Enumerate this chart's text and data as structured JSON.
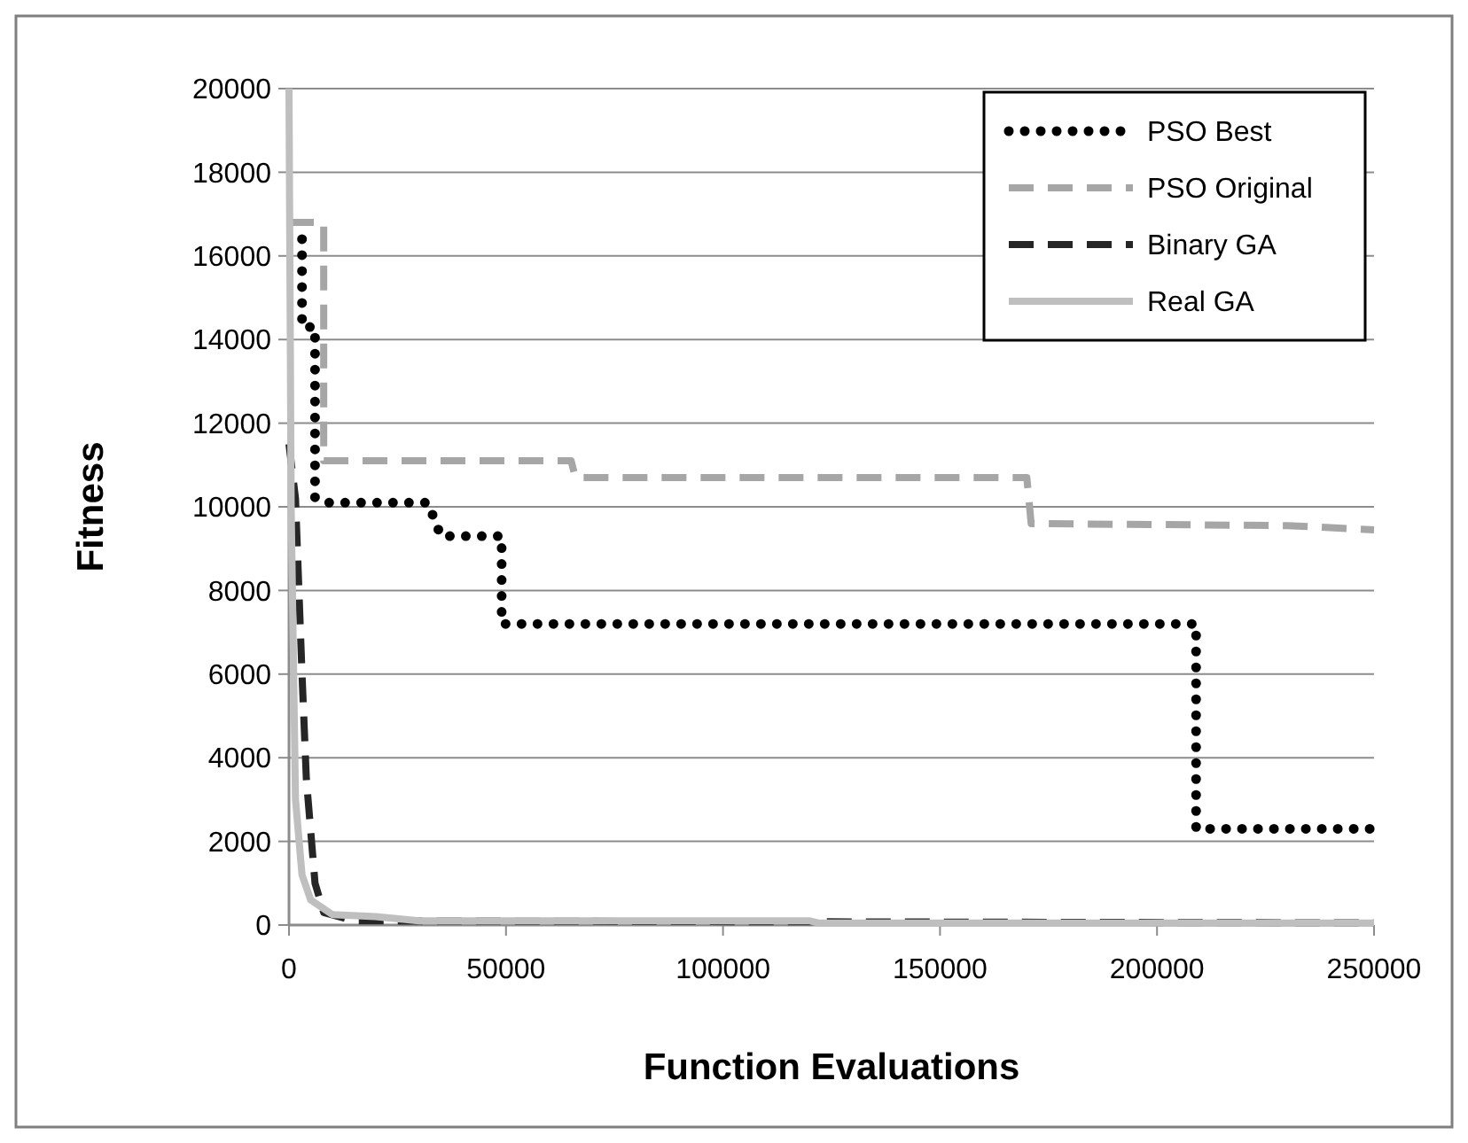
{
  "chart_data": {
    "type": "line",
    "xlabel": "Function Evaluations",
    "ylabel": "Fitness",
    "xlim": [
      0,
      250000
    ],
    "xticks": [
      0,
      50000,
      100000,
      150000,
      200000,
      250000
    ],
    "ylim": [
      0,
      20000
    ],
    "yticks": [
      0,
      2000,
      4000,
      6000,
      8000,
      10000,
      12000,
      14000,
      16000,
      18000,
      20000
    ],
    "grid": "y",
    "legend": "top right",
    "series": [
      {
        "name": "PSO Best",
        "color": "#000000",
        "line_style": "dotted",
        "x": [
          3000,
          3000,
          6000,
          6000,
          9000,
          32000,
          35000,
          49000,
          49000,
          209000,
          209000,
          250000
        ],
        "values": [
          16400,
          14300,
          14300,
          10200,
          10100,
          10100,
          9300,
          9300,
          7200,
          7200,
          2300,
          2300
        ]
      },
      {
        "name": "PSO Original",
        "color": "#a6a6a6",
        "line_style": "dashed",
        "x": [
          0,
          8000,
          8000,
          65000,
          66000,
          170000,
          171000,
          230000,
          250000
        ],
        "values": [
          16800,
          16800,
          11100,
          11100,
          10700,
          10700,
          9600,
          9550,
          9450
        ]
      },
      {
        "name": "Binary GA",
        "color": "#262626",
        "line_style": "dashed",
        "x": [
          0,
          1500,
          3000,
          4000,
          6000,
          8000,
          15000,
          250000
        ],
        "values": [
          11500,
          10200,
          6000,
          3500,
          1000,
          300,
          100,
          50
        ]
      },
      {
        "name": "Real GA",
        "color": "#bfbfbf",
        "line_style": "solid",
        "x": [
          0,
          500,
          1500,
          3000,
          5000,
          10000,
          20000,
          30000,
          120000,
          122000,
          250000
        ],
        "values": [
          20000,
          10000,
          3000,
          1200,
          600,
          250,
          200,
          100,
          100,
          50,
          50
        ]
      }
    ]
  }
}
